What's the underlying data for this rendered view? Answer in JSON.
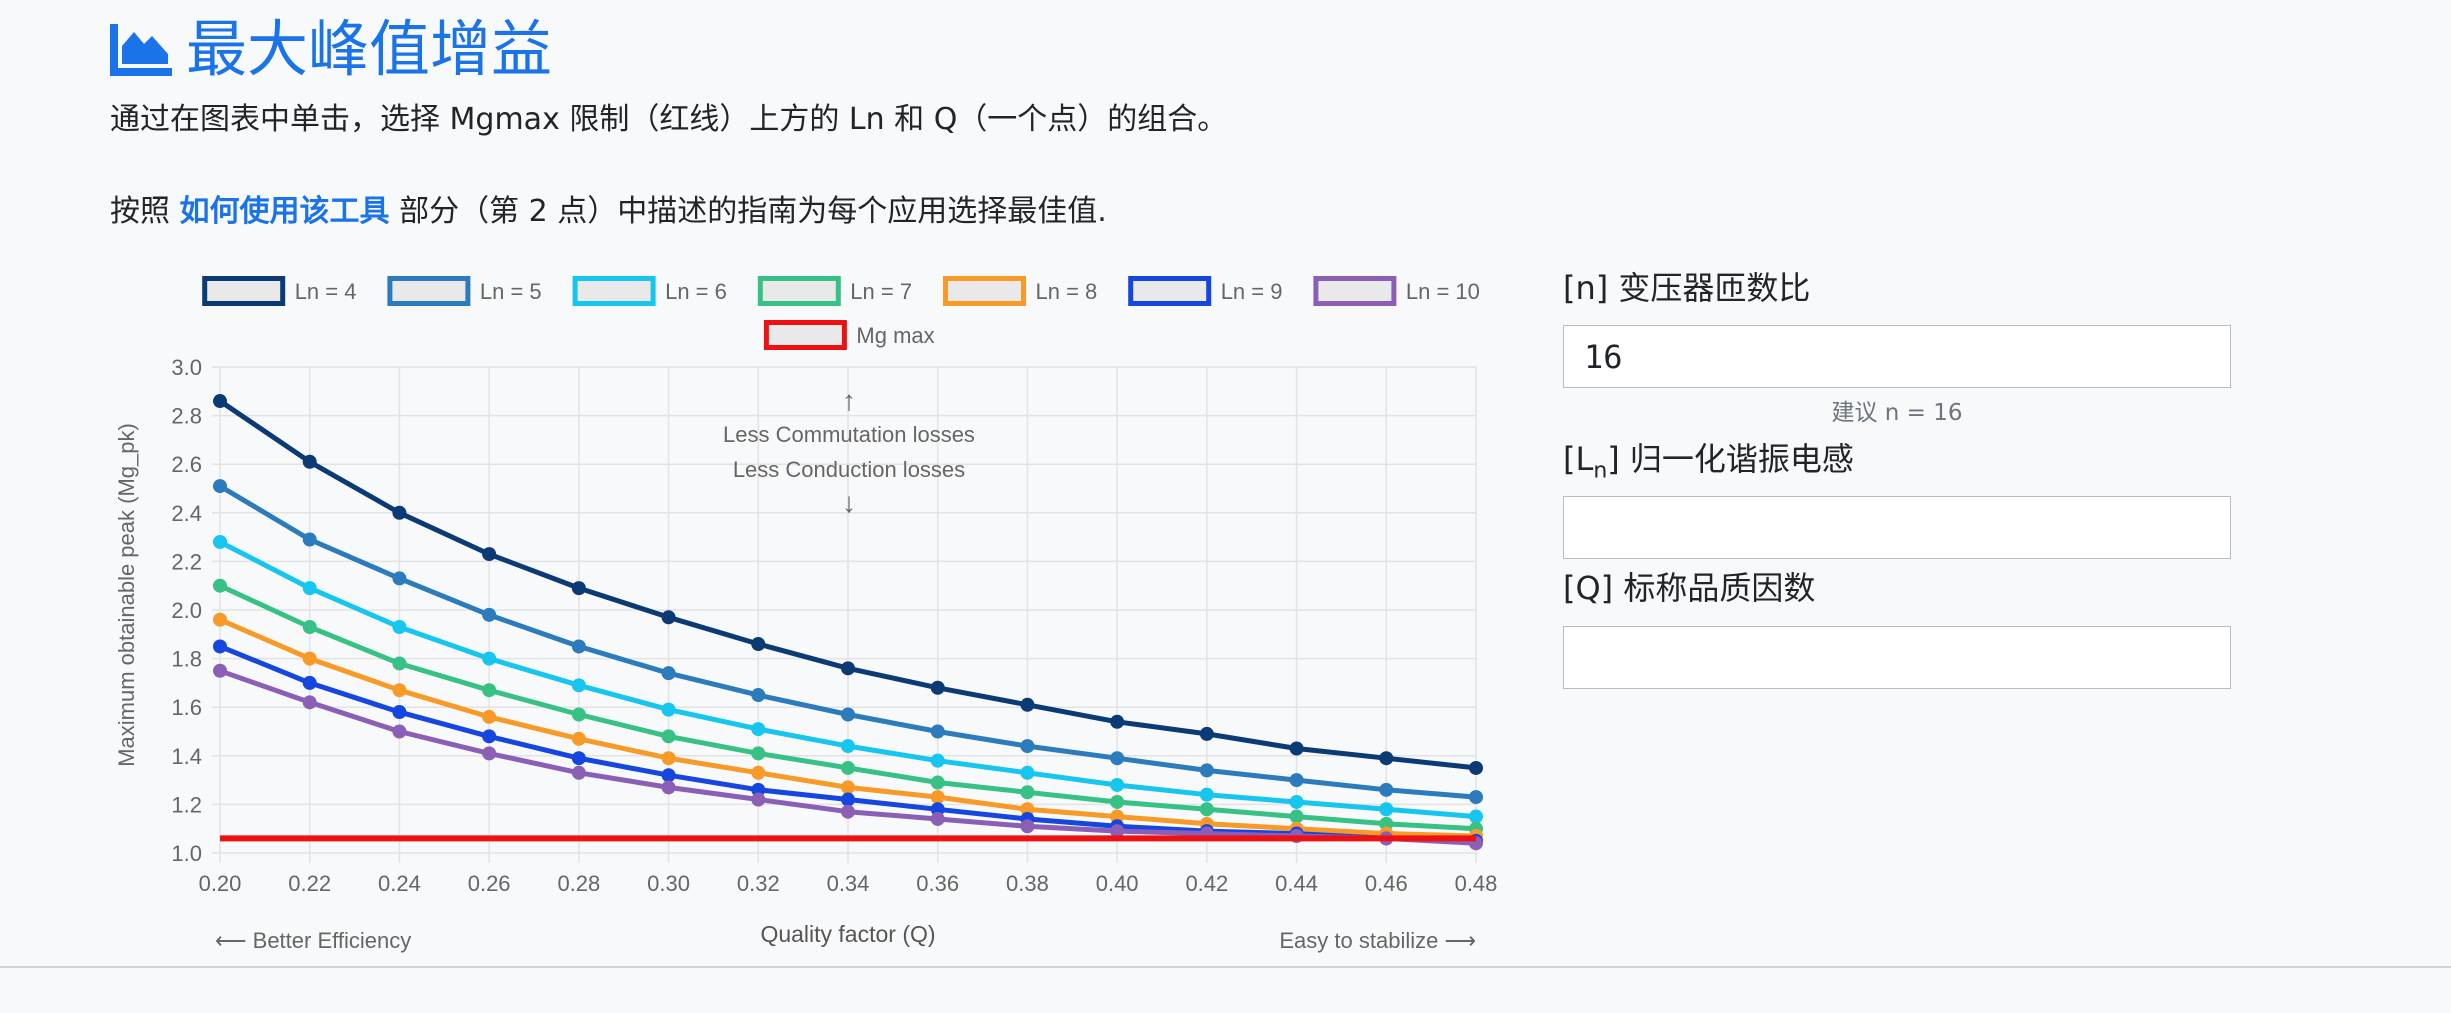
{
  "header": {
    "title": "最大峰值增益",
    "intro": "通过在图表中单击，选择 Mgmax 限制（红线）上方的 Ln 和 Q（一个点）的组合。",
    "guide_prefix": "按照 ",
    "guide_link": "如何使用该工具",
    "guide_suffix": " 部分（第 2 点）中描述的指南为每个应用选择最佳值."
  },
  "form": {
    "n": {
      "label": "[n] 变压器匝数比",
      "value": "16",
      "hint": "建议 n = 16"
    },
    "ln": {
      "label_prefix": "[L",
      "label_sub": "n",
      "label_suffix": "] 归一化谐振电感",
      "value": ""
    },
    "q": {
      "label": "[Q] 标称品质因数",
      "value": ""
    }
  },
  "chart_data": {
    "type": "line",
    "xlabel": "Quality factor (Q)",
    "ylabel": "Maximum obtainable peak (Mg_pk)",
    "x": [
      0.2,
      0.22,
      0.24,
      0.26,
      0.28,
      0.3,
      0.32,
      0.34,
      0.36,
      0.38,
      0.4,
      0.42,
      0.44,
      0.46,
      0.48
    ],
    "xticks": [
      "0.20",
      "0.22",
      "0.24",
      "0.26",
      "0.28",
      "0.30",
      "0.32",
      "0.34",
      "0.36",
      "0.38",
      "0.40",
      "0.42",
      "0.44",
      "0.46",
      "0.48"
    ],
    "yticks": [
      "1.0",
      "1.2",
      "1.4",
      "1.6",
      "1.8",
      "2.0",
      "2.2",
      "2.4",
      "2.6",
      "2.8",
      "3.0"
    ],
    "xlim": [
      0.2,
      0.48
    ],
    "ylim": [
      1.0,
      3.0
    ],
    "grid": true,
    "legend_position": "top",
    "series": [
      {
        "name": "Ln = 4",
        "color": "#0b3a74",
        "values": [
          2.86,
          2.61,
          2.4,
          2.23,
          2.09,
          1.97,
          1.86,
          1.76,
          1.68,
          1.61,
          1.54,
          1.49,
          1.43,
          1.39,
          1.35
        ]
      },
      {
        "name": "Ln = 5",
        "color": "#2b7bbd",
        "values": [
          2.51,
          2.29,
          2.13,
          1.98,
          1.85,
          1.74,
          1.65,
          1.57,
          1.5,
          1.44,
          1.39,
          1.34,
          1.3,
          1.26,
          1.23
        ]
      },
      {
        "name": "Ln = 6",
        "color": "#16c6ef",
        "values": [
          2.28,
          2.09,
          1.93,
          1.8,
          1.69,
          1.59,
          1.51,
          1.44,
          1.38,
          1.33,
          1.28,
          1.24,
          1.21,
          1.18,
          1.15
        ]
      },
      {
        "name": "Ln = 7",
        "color": "#38c185",
        "values": [
          2.1,
          1.93,
          1.78,
          1.67,
          1.57,
          1.48,
          1.41,
          1.35,
          1.29,
          1.25,
          1.21,
          1.18,
          1.15,
          1.12,
          1.1
        ]
      },
      {
        "name": "Ln = 8",
        "color": "#f79a27",
        "values": [
          1.96,
          1.8,
          1.67,
          1.56,
          1.47,
          1.39,
          1.33,
          1.27,
          1.23,
          1.18,
          1.15,
          1.12,
          1.1,
          1.08,
          1.07
        ]
      },
      {
        "name": "Ln = 9",
        "color": "#1546e0",
        "values": [
          1.85,
          1.7,
          1.58,
          1.48,
          1.39,
          1.32,
          1.26,
          1.22,
          1.18,
          1.14,
          1.11,
          1.09,
          1.08,
          1.06,
          1.05
        ]
      },
      {
        "name": "Ln = 10",
        "color": "#8c5fb6",
        "values": [
          1.75,
          1.62,
          1.5,
          1.41,
          1.33,
          1.27,
          1.22,
          1.17,
          1.14,
          1.11,
          1.09,
          1.08,
          1.07,
          1.06,
          1.04
        ]
      },
      {
        "name": "Mg max",
        "color": "#ee1111",
        "values": [
          1.06,
          1.06,
          1.06,
          1.06,
          1.06,
          1.06,
          1.06,
          1.06,
          1.06,
          1.06,
          1.06,
          1.06,
          1.06,
          1.06,
          1.06
        ],
        "no_points": true
      }
    ],
    "annotations": {
      "up_arrow": "↑",
      "line1": "Less Commutation losses",
      "line2": "Less Conduction losses",
      "down_arrow": "↓",
      "left_note": "⟵ Better Efficiency",
      "right_note": "Easy to stabilize ⟶"
    }
  }
}
